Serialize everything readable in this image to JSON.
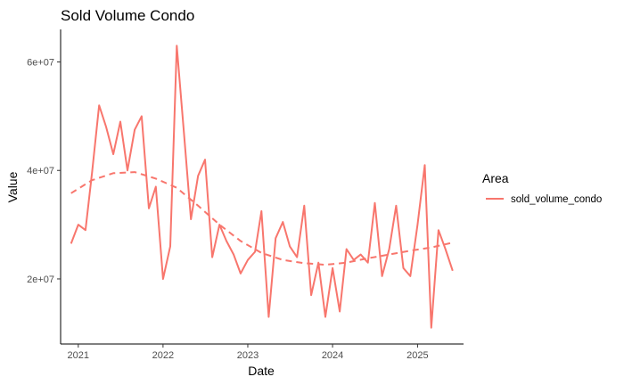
{
  "chart_data": {
    "type": "line",
    "title": "Sold Volume Condo",
    "xlabel": "Date",
    "ylabel": "Value",
    "x_ticks": [
      "2021",
      "2022",
      "2023",
      "2024",
      "2025"
    ],
    "y_ticks": [
      "2e+07",
      "4e+07",
      "6e+07"
    ],
    "y_tick_values": [
      20000000,
      40000000,
      60000000
    ],
    "ylim": [
      8000000,
      66000000
    ],
    "xlim": [
      "2020-10-17",
      "2025-07-18"
    ],
    "grid": false,
    "legend": {
      "title": "Area",
      "position": "right"
    },
    "series": [
      {
        "name": "sold_volume_condo",
        "color": "#F8766D",
        "style": "solid",
        "x": [
          "2020-12-01",
          "2021-01-01",
          "2021-02-01",
          "2021-03-01",
          "2021-04-01",
          "2021-05-01",
          "2021-06-01",
          "2021-07-01",
          "2021-08-01",
          "2021-09-01",
          "2021-10-01",
          "2021-11-01",
          "2021-12-01",
          "2022-01-01",
          "2022-02-01",
          "2022-03-01",
          "2022-04-01",
          "2022-05-01",
          "2022-06-01",
          "2022-07-01",
          "2022-08-01",
          "2022-09-01",
          "2022-10-01",
          "2022-11-01",
          "2022-12-01",
          "2023-01-01",
          "2023-02-01",
          "2023-03-01",
          "2023-04-01",
          "2023-05-01",
          "2023-06-01",
          "2023-07-01",
          "2023-08-01",
          "2023-09-01",
          "2023-10-01",
          "2023-11-01",
          "2023-12-01",
          "2024-01-01",
          "2024-02-01",
          "2024-03-01",
          "2024-04-01",
          "2024-05-01",
          "2024-06-01",
          "2024-07-01",
          "2024-08-01",
          "2024-09-01",
          "2024-10-01",
          "2024-11-01",
          "2024-12-01",
          "2025-01-01",
          "2025-02-01",
          "2025-03-01",
          "2025-04-01",
          "2025-05-01",
          "2025-06-01"
        ],
        "y": [
          26500000,
          30000000,
          29000000,
          39500000,
          52000000,
          48000000,
          43000000,
          49000000,
          40000000,
          47500000,
          50000000,
          33000000,
          37000000,
          20000000,
          26000000,
          63000000,
          47000000,
          31000000,
          39000000,
          42000000,
          24000000,
          30000000,
          27000000,
          24500000,
          21000000,
          23500000,
          25000000,
          32500000,
          13000000,
          27500000,
          30500000,
          26000000,
          24000000,
          33500000,
          17000000,
          23000000,
          13000000,
          22000000,
          14000000,
          25500000,
          23500000,
          24500000,
          23000000,
          34000000,
          20500000,
          25500000,
          33500000,
          22000000,
          20500000,
          30000000,
          41000000,
          11000000,
          29000000,
          25500000,
          21500000
        ]
      },
      {
        "name": "",
        "color": "#F8766D",
        "style": "dashed",
        "x": [
          "2020-12-01",
          "2021-03-01",
          "2021-06-01",
          "2021-09-01",
          "2021-12-01",
          "2022-03-01",
          "2022-06-01",
          "2022-09-01",
          "2022-12-01",
          "2023-03-01",
          "2023-06-01",
          "2023-09-01",
          "2023-12-01",
          "2024-03-01",
          "2024-06-01",
          "2024-09-01",
          "2024-12-01",
          "2025-03-01",
          "2025-06-01"
        ],
        "y": [
          35800000,
          38200000,
          39500000,
          39700000,
          38500000,
          36800000,
          33500000,
          30000000,
          27000000,
          24800000,
          23500000,
          22900000,
          22600000,
          23000000,
          23800000,
          24500000,
          25200000,
          25800000,
          26700000
        ]
      }
    ]
  }
}
